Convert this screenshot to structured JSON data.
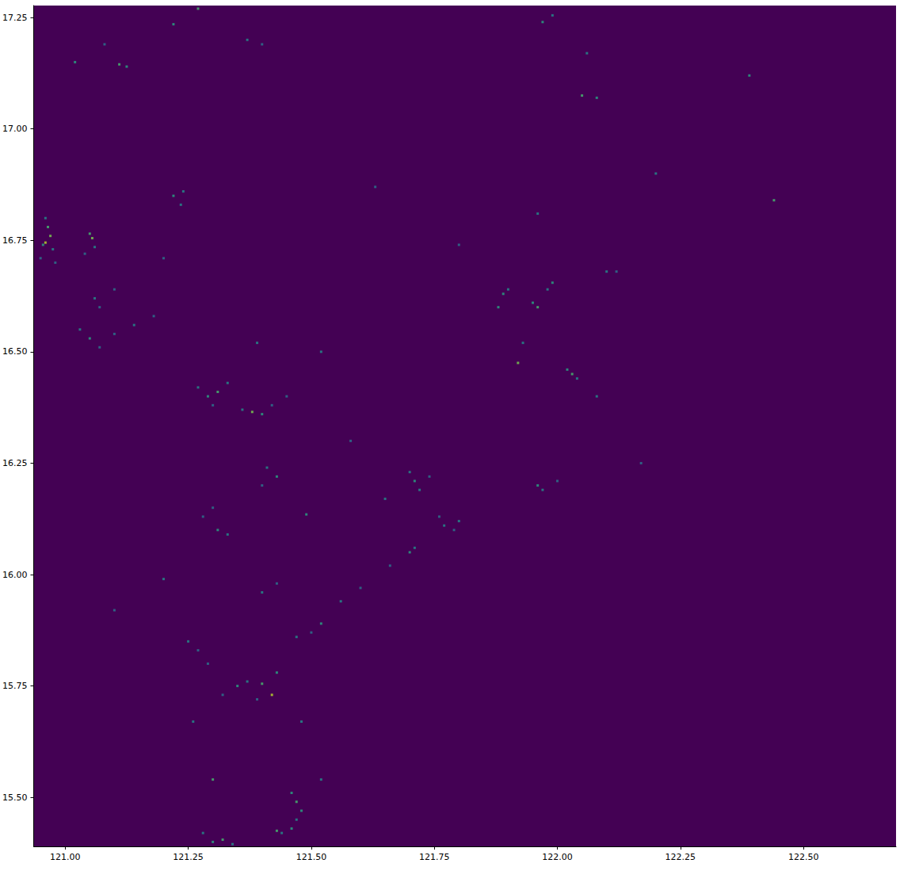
{
  "chart_data": {
    "type": "heatmap",
    "xlim": [
      120.936,
      122.688
    ],
    "ylim": [
      15.39,
      17.277
    ],
    "xticks": [
      {
        "value": 121.0,
        "label": "121.00"
      },
      {
        "value": 121.25,
        "label": "121.25"
      },
      {
        "value": 121.5,
        "label": "121.50"
      },
      {
        "value": 121.75,
        "label": "121.75"
      },
      {
        "value": 122.0,
        "label": "122.00"
      },
      {
        "value": 122.25,
        "label": "122.25"
      },
      {
        "value": 122.5,
        "label": "122.50"
      }
    ],
    "yticks": [
      {
        "value": 15.5,
        "label": "15.50"
      },
      {
        "value": 15.75,
        "label": "15.75"
      },
      {
        "value": 16.0,
        "label": "16.00"
      },
      {
        "value": 16.25,
        "label": "16.25"
      },
      {
        "value": 16.5,
        "label": "16.50"
      },
      {
        "value": 16.75,
        "label": "16.75"
      },
      {
        "value": 17.0,
        "label": "17.00"
      },
      {
        "value": 17.25,
        "label": "17.25"
      }
    ],
    "grid": false,
    "clim": [
      0,
      1
    ],
    "points": [
      [
        120.96,
        16.8,
        0.5
      ],
      [
        120.965,
        16.78,
        0.7
      ],
      [
        120.97,
        16.76,
        0.8
      ],
      [
        120.96,
        16.745,
        0.9
      ],
      [
        120.955,
        16.74,
        0.6
      ],
      [
        120.975,
        16.73,
        0.5
      ],
      [
        120.95,
        16.71,
        0.4
      ],
      [
        120.98,
        16.7,
        0.4
      ],
      [
        121.05,
        16.765,
        0.7
      ],
      [
        121.055,
        16.755,
        0.8
      ],
      [
        121.06,
        16.735,
        0.5
      ],
      [
        121.04,
        16.72,
        0.4
      ],
      [
        121.06,
        16.62,
        0.5
      ],
      [
        121.07,
        16.6,
        0.4
      ],
      [
        121.03,
        16.55,
        0.5
      ],
      [
        121.05,
        16.53,
        0.6
      ],
      [
        121.07,
        16.51,
        0.4
      ],
      [
        121.1,
        16.54,
        0.4
      ],
      [
        121.14,
        16.56,
        0.5
      ],
      [
        121.18,
        16.58,
        0.4
      ],
      [
        121.02,
        17.15,
        0.6
      ],
      [
        121.11,
        17.145,
        0.7
      ],
      [
        121.125,
        17.14,
        0.6
      ],
      [
        121.08,
        17.19,
        0.4
      ],
      [
        121.22,
        17.235,
        0.6
      ],
      [
        121.27,
        17.27,
        0.7
      ],
      [
        121.37,
        17.2,
        0.5
      ],
      [
        121.4,
        17.19,
        0.4
      ],
      [
        121.22,
        16.85,
        0.6
      ],
      [
        121.235,
        16.83,
        0.5
      ],
      [
        121.24,
        16.86,
        0.5
      ],
      [
        121.27,
        16.42,
        0.5
      ],
      [
        121.29,
        16.4,
        0.6
      ],
      [
        121.31,
        16.41,
        0.7
      ],
      [
        121.33,
        16.43,
        0.5
      ],
      [
        121.3,
        16.38,
        0.4
      ],
      [
        121.36,
        16.37,
        0.5
      ],
      [
        121.38,
        16.365,
        0.8
      ],
      [
        121.4,
        16.36,
        0.6
      ],
      [
        121.42,
        16.38,
        0.4
      ],
      [
        121.45,
        16.4,
        0.4
      ],
      [
        121.39,
        16.52,
        0.5
      ],
      [
        121.52,
        16.5,
        0.5
      ],
      [
        121.41,
        16.24,
        0.5
      ],
      [
        121.43,
        16.22,
        0.6
      ],
      [
        121.4,
        16.2,
        0.4
      ],
      [
        121.3,
        16.15,
        0.4
      ],
      [
        121.31,
        16.1,
        0.6
      ],
      [
        121.33,
        16.09,
        0.5
      ],
      [
        121.28,
        16.13,
        0.4
      ],
      [
        121.49,
        16.135,
        0.6
      ],
      [
        121.43,
        15.98,
        0.4
      ],
      [
        121.4,
        15.96,
        0.5
      ],
      [
        121.7,
        16.23,
        0.5
      ],
      [
        121.71,
        16.21,
        0.6
      ],
      [
        121.72,
        16.19,
        0.5
      ],
      [
        121.74,
        16.22,
        0.4
      ],
      [
        121.77,
        16.11,
        0.5
      ],
      [
        121.79,
        16.1,
        0.4
      ],
      [
        121.76,
        16.13,
        0.4
      ],
      [
        121.8,
        16.12,
        0.5
      ],
      [
        121.71,
        16.06,
        0.5
      ],
      [
        121.7,
        16.05,
        0.6
      ],
      [
        121.66,
        16.02,
        0.4
      ],
      [
        121.6,
        15.97,
        0.4
      ],
      [
        121.56,
        15.94,
        0.5
      ],
      [
        121.52,
        15.89,
        0.6
      ],
      [
        121.5,
        15.87,
        0.4
      ],
      [
        121.47,
        15.86,
        0.5
      ],
      [
        121.35,
        15.75,
        0.6
      ],
      [
        121.37,
        15.76,
        0.5
      ],
      [
        121.4,
        15.755,
        0.7
      ],
      [
        121.42,
        15.73,
        0.9
      ],
      [
        121.43,
        15.78,
        0.6
      ],
      [
        121.39,
        15.72,
        0.4
      ],
      [
        121.32,
        15.73,
        0.4
      ],
      [
        121.25,
        15.85,
        0.5
      ],
      [
        121.27,
        15.83,
        0.4
      ],
      [
        121.29,
        15.8,
        0.4
      ],
      [
        121.48,
        15.67,
        0.5
      ],
      [
        121.3,
        15.54,
        0.7
      ],
      [
        121.46,
        15.51,
        0.6
      ],
      [
        121.47,
        15.49,
        0.7
      ],
      [
        121.48,
        15.47,
        0.6
      ],
      [
        121.47,
        15.45,
        0.5
      ],
      [
        121.46,
        15.43,
        0.6
      ],
      [
        121.44,
        15.42,
        0.5
      ],
      [
        121.43,
        15.425,
        0.7
      ],
      [
        121.52,
        15.54,
        0.5
      ],
      [
        121.3,
        15.4,
        0.6
      ],
      [
        121.32,
        15.405,
        0.7
      ],
      [
        121.28,
        15.42,
        0.5
      ],
      [
        121.34,
        15.395,
        0.5
      ],
      [
        121.26,
        15.67,
        0.5
      ],
      [
        121.89,
        16.63,
        0.6
      ],
      [
        121.9,
        16.64,
        0.5
      ],
      [
        121.95,
        16.61,
        0.6
      ],
      [
        121.96,
        16.6,
        0.7
      ],
      [
        121.98,
        16.64,
        0.5
      ],
      [
        121.99,
        16.655,
        0.6
      ],
      [
        121.88,
        16.6,
        0.6
      ],
      [
        121.92,
        16.475,
        0.8
      ],
      [
        121.93,
        16.52,
        0.5
      ],
      [
        122.02,
        16.46,
        0.6
      ],
      [
        122.03,
        16.45,
        0.7
      ],
      [
        122.04,
        16.44,
        0.5
      ],
      [
        121.96,
        16.2,
        0.6
      ],
      [
        121.97,
        16.19,
        0.5
      ],
      [
        122.0,
        16.21,
        0.4
      ],
      [
        122.08,
        16.4,
        0.5
      ],
      [
        122.1,
        16.68,
        0.5
      ],
      [
        122.12,
        16.68,
        0.4
      ],
      [
        121.96,
        16.81,
        0.5
      ],
      [
        122.17,
        16.25,
        0.4
      ],
      [
        122.05,
        17.075,
        0.7
      ],
      [
        122.08,
        17.07,
        0.6
      ],
      [
        122.06,
        17.17,
        0.5
      ],
      [
        121.97,
        17.24,
        0.6
      ],
      [
        121.99,
        17.255,
        0.5
      ],
      [
        122.39,
        17.12,
        0.6
      ],
      [
        122.44,
        16.84,
        0.7
      ],
      [
        122.2,
        16.9,
        0.5
      ],
      [
        121.1,
        16.64,
        0.4
      ],
      [
        121.2,
        16.71,
        0.4
      ],
      [
        121.63,
        16.87,
        0.4
      ],
      [
        121.8,
        16.74,
        0.4
      ],
      [
        121.58,
        16.3,
        0.4
      ],
      [
        121.65,
        16.17,
        0.5
      ],
      [
        121.2,
        15.99,
        0.5
      ],
      [
        121.1,
        15.92,
        0.4
      ]
    ]
  }
}
